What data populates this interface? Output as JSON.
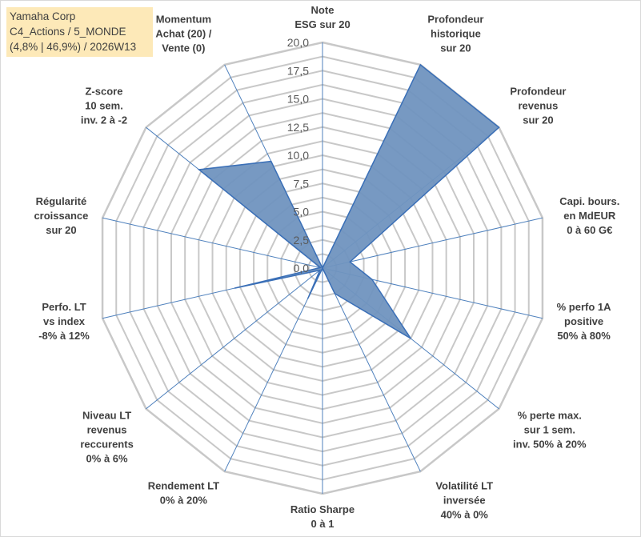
{
  "title": {
    "line1": "Yamaha Corp",
    "line2": "C4_Actions / 5_MONDE",
    "line3": "(4,8% | 46,9%) / 2026W13"
  },
  "chart_data": {
    "type": "radar",
    "rlim": [
      0,
      20
    ],
    "ticks": [
      "0,0",
      "2,5",
      "5,0",
      "7,5",
      "10,0",
      "12,5",
      "15,0",
      "17,5",
      "20,0"
    ],
    "tick_values": [
      0,
      2.5,
      5,
      7.5,
      10,
      12.5,
      15,
      17.5,
      20
    ],
    "grid_step": 1.25,
    "categories": [
      {
        "lines": [
          "Note",
          "ESG sur 20"
        ]
      },
      {
        "lines": [
          "Profondeur",
          "historique",
          "sur 20"
        ]
      },
      {
        "lines": [
          "Profondeur",
          "revenus",
          "sur 20"
        ]
      },
      {
        "lines": [
          "Capi. bours.",
          "en MdEUR",
          "0 à 60 G€"
        ]
      },
      {
        "lines": [
          "% perfo 1A",
          "positive",
          "50% à 80%"
        ]
      },
      {
        "lines": [
          "% perte max.",
          "sur 1 sem.",
          "inv. 50% à 20%"
        ]
      },
      {
        "lines": [
          "Volatilité LT",
          "inversée",
          "40% à 0%"
        ]
      },
      {
        "lines": [
          "Ratio Sharpe",
          "0 à 1"
        ]
      },
      {
        "lines": [
          "Rendement LT",
          "0% à 20%"
        ]
      },
      {
        "lines": [
          "Niveau LT",
          "revenus",
          "reccurents",
          "0% à 6%"
        ]
      },
      {
        "lines": [
          "Perfo. LT",
          "vs index",
          "-8% à 12%"
        ]
      },
      {
        "lines": [
          "Régularité",
          "croissance",
          "sur 20"
        ]
      },
      {
        "lines": [
          "Z-score",
          "10 sem.",
          "inv. 2 à -2"
        ]
      },
      {
        "lines": [
          "Momentum",
          "Achat (20) /",
          "Vente (0)"
        ]
      }
    ],
    "values": [
      0,
      20,
      20,
      2.5,
      4.5,
      10,
      2.5,
      0,
      3,
      0.3,
      8,
      0.2,
      14,
      10.5
    ],
    "series_name": "Yamaha Corp",
    "colors": {
      "fill": "#7094bf",
      "stroke": "#3a6fb7",
      "grid": "#c8c8c8",
      "spoke": "#4f81bd",
      "title_bg": "#fde9b8"
    }
  }
}
